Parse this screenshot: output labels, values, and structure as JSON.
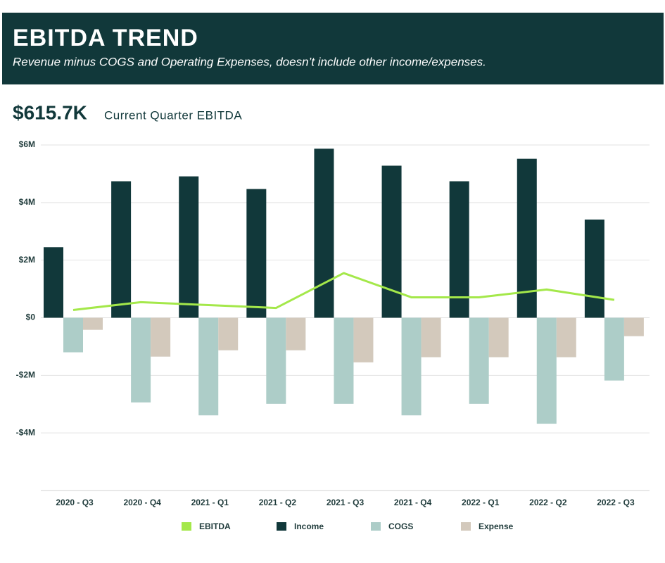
{
  "header": {
    "title": "EBITDA TREND",
    "subtitle": "Revenue minus COGS and Operating Expenses, doesn’t include other income/expenses."
  },
  "kpi": {
    "value": "$615.7K",
    "label": "Current Quarter EBITDA"
  },
  "chart_data": {
    "type": "bar",
    "categories": [
      "2020 - Q3",
      "2020 - Q4",
      "2021 - Q1",
      "2021 - Q2",
      "2021 - Q3",
      "2021 - Q4",
      "2022 - Q1",
      "2022 - Q2",
      "2022 - Q3"
    ],
    "series": [
      {
        "name": "EBITDA",
        "type": "line",
        "color": "#a4e84a",
        "values": [
          0.27,
          0.54,
          0.44,
          0.34,
          1.55,
          0.71,
          0.71,
          0.98,
          0.62
        ]
      },
      {
        "name": "Income",
        "type": "bar",
        "color": "#11383a",
        "values": [
          2.45,
          4.74,
          4.91,
          4.47,
          5.87,
          5.28,
          4.74,
          5.52,
          3.41
        ]
      },
      {
        "name": "COGS",
        "type": "bar",
        "color": "#adcdc8",
        "values": [
          -1.2,
          -2.94,
          -3.39,
          -2.99,
          -2.99,
          -3.39,
          -2.99,
          -3.68,
          -2.18
        ]
      },
      {
        "name": "Expense",
        "type": "bar",
        "color": "#d3c9bc",
        "values": [
          -0.42,
          -1.35,
          -1.13,
          -1.13,
          -1.55,
          -1.37,
          -1.37,
          -1.37,
          -0.64
        ]
      }
    ],
    "ylim": [
      -6,
      6
    ],
    "yticks": [
      {
        "value": 6,
        "label": "$6M"
      },
      {
        "value": 4,
        "label": "$4M"
      },
      {
        "value": 2,
        "label": "$2M"
      },
      {
        "value": 0,
        "label": "$0"
      },
      {
        "value": -2,
        "label": "-$2M"
      },
      {
        "value": -4,
        "label": "-$4M"
      }
    ],
    "grid": true
  }
}
